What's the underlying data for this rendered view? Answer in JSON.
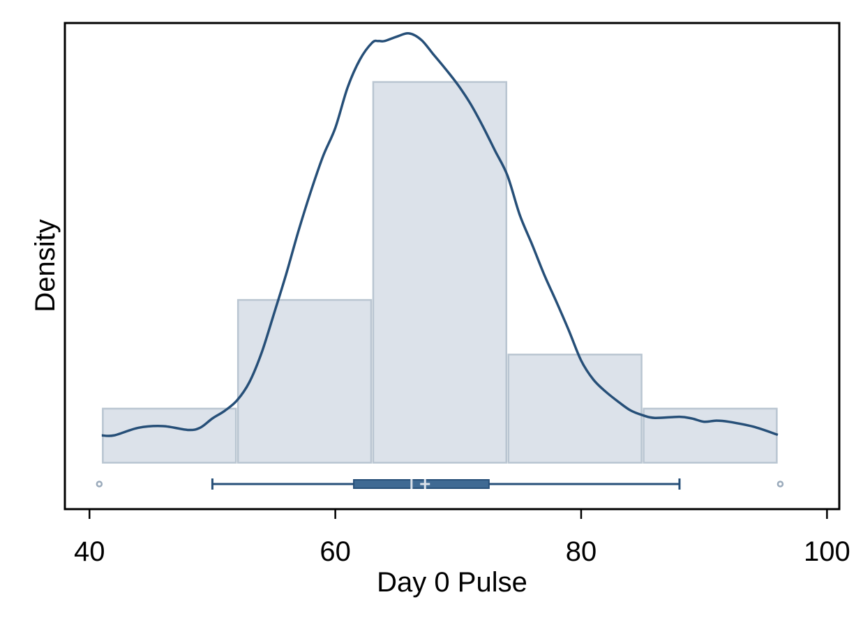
{
  "chart_data": {
    "type": "histogram",
    "xlabel": "Day 0 Pulse",
    "ylabel": "Density",
    "xlim": [
      38,
      101
    ],
    "ylim": [
      -0.0085,
      0.0805
    ],
    "x_ticks": [
      40,
      60,
      80,
      100
    ],
    "y_ticks_shown": false,
    "grid": false,
    "legend": "none",
    "histogram": {
      "bin_edges": [
        41,
        52,
        63,
        74,
        85,
        96
      ],
      "densities": [
        0.0099,
        0.0298,
        0.0697,
        0.0198,
        0.0099
      ]
    },
    "density_curve": {
      "x": [
        41,
        42,
        44,
        46,
        48,
        49,
        50,
        51,
        52,
        53,
        54,
        55,
        56,
        57,
        58,
        59,
        60,
        61,
        62,
        63,
        63.5,
        64,
        65,
        66,
        67,
        68,
        69,
        70,
        71,
        72,
        73,
        74,
        75,
        76,
        77,
        78,
        79,
        80,
        81,
        82,
        83,
        84,
        85,
        86,
        88,
        89,
        90,
        91,
        92,
        94,
        96
      ],
      "y": [
        0.005,
        0.005,
        0.0064,
        0.0067,
        0.006,
        0.0064,
        0.0081,
        0.0095,
        0.0114,
        0.0147,
        0.0201,
        0.0272,
        0.0345,
        0.0424,
        0.0496,
        0.0561,
        0.0613,
        0.0687,
        0.0738,
        0.0769,
        0.0772,
        0.0772,
        0.078,
        0.0786,
        0.0774,
        0.0747,
        0.072,
        0.0691,
        0.0657,
        0.0616,
        0.0571,
        0.0526,
        0.0454,
        0.04,
        0.0344,
        0.0294,
        0.0242,
        0.0187,
        0.0152,
        0.013,
        0.0112,
        0.0096,
        0.0087,
        0.0082,
        0.0084,
        0.0081,
        0.0075,
        0.0077,
        0.0075,
        0.0066,
        0.0051
      ]
    },
    "boxplot": {
      "whisker_low": 50,
      "q1": 61.5,
      "median": 66.2,
      "mean": 67.3,
      "q3": 72.5,
      "whisker_high": 88,
      "outliers": [
        40.8,
        96.2
      ]
    },
    "colors": {
      "bar_fill": "#dce2ea",
      "bar_stroke": "#b9c5d1",
      "curve": "#264f78",
      "box_fill": "#3f6a93",
      "box_stroke": "#264f78",
      "outlier": "#9aaabb",
      "box_marker": "#dce2ea"
    }
  }
}
